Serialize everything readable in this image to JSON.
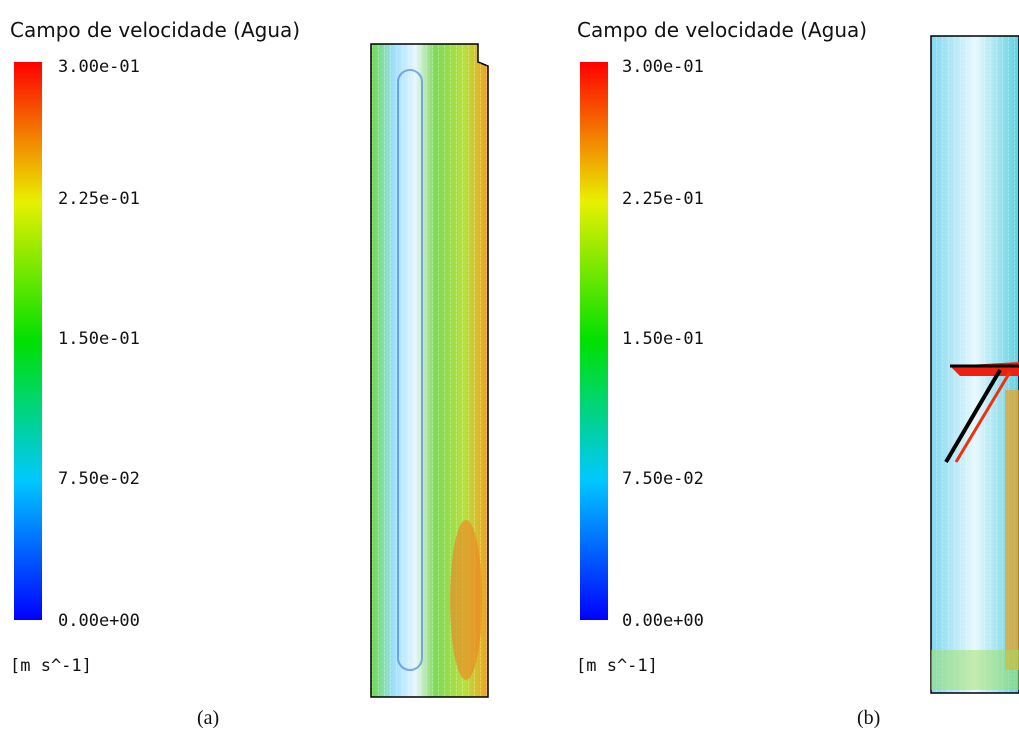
{
  "panels": [
    {
      "title": "Campo de velocidade (Agua)",
      "ticks": [
        "3.00e-01",
        "2.25e-01",
        "1.50e-01",
        "7.50e-02",
        "0.00e+00"
      ],
      "unit": "[m s^-1]",
      "caption": "(a)"
    },
    {
      "title": "Campo de velocidade (Agua)",
      "ticks": [
        "3.00e-01",
        "2.25e-01",
        "1.50e-01",
        "7.50e-02",
        "0.00e+00"
      ],
      "unit": "[m s^-1]",
      "caption": "(b)"
    }
  ]
}
